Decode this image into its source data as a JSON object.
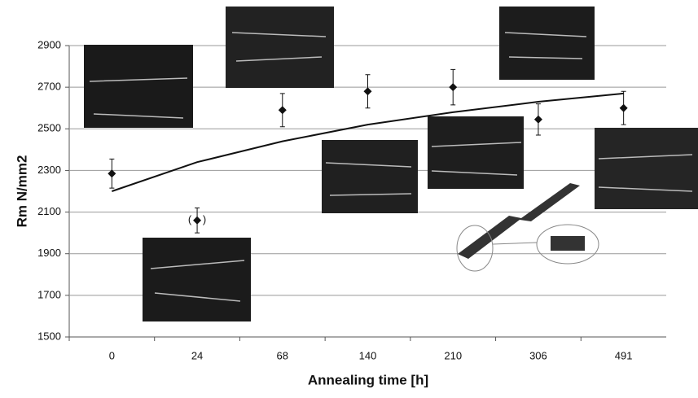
{
  "chart_data": {
    "type": "scatter",
    "x_label": "Annealing time [h]",
    "y_label": "Rm N/mm2",
    "categories": [
      "0",
      "24",
      "68",
      "140",
      "210",
      "306",
      "491"
    ],
    "series": [
      {
        "color": "#111111",
        "values": [
          2285,
          2060,
          2590,
          2680,
          2700,
          2545,
          2600
        ],
        "errors": [
          70,
          60,
          80,
          80,
          85,
          75,
          80
        ]
      },
      {
        "color": "#111111",
        "style": "line",
        "values": [
          2200,
          2340,
          2440,
          2520,
          2580,
          2630,
          2670
        ]
      }
    ],
    "annotations": [
      "(",
      ")"
    ],
    "ylim": [
      1500,
      2900
    ],
    "yticks": [
      1500,
      1700,
      1900,
      2100,
      2300,
      2500,
      2700,
      2900
    ],
    "grid": true
  }
}
